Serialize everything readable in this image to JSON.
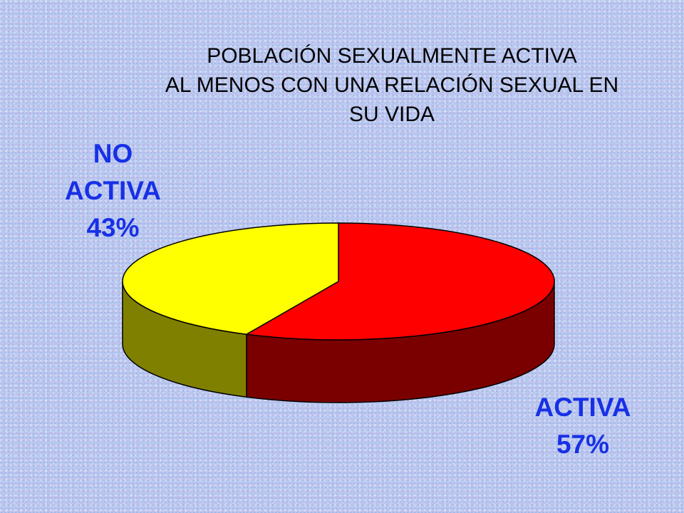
{
  "chart_data": {
    "type": "pie",
    "title_lines": [
      "POBLACIÓN SEXUALMENTE ACTIVA",
      "AL MENOS CON UNA RELACIÓN SEXUAL EN",
      "SU VIDA"
    ],
    "three_d": true,
    "legend": "none",
    "slices": [
      {
        "label_lines": [
          "ACTIVA"
        ],
        "value_text": "57%",
        "value": 57,
        "color": "#ff0000",
        "side_color": "#7a0000"
      },
      {
        "label_lines": [
          "NO",
          "ACTIVA"
        ],
        "value_text": "43%",
        "value": 43,
        "color": "#ffff00",
        "side_color": "#808000"
      }
    ],
    "label_color": "#1730e6"
  }
}
